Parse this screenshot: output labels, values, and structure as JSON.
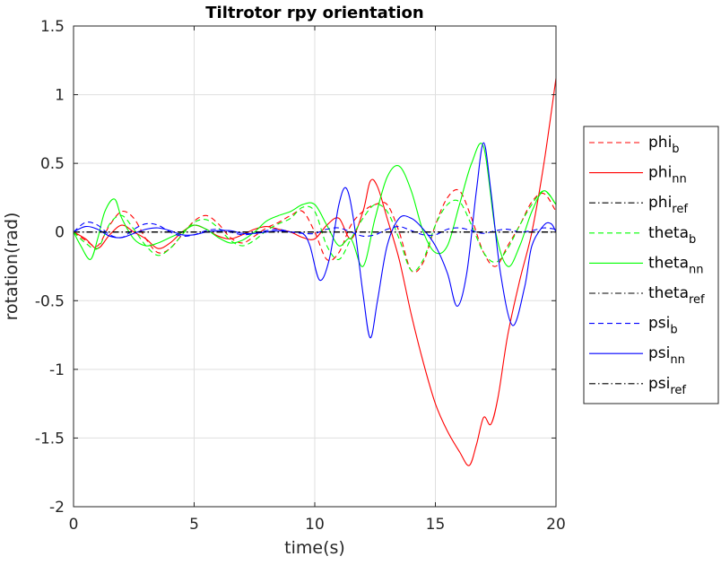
{
  "chart_data": {
    "type": "line",
    "title": "Tiltrotor rpy orientation",
    "xlabel": "time(s)",
    "ylabel": "rotation(rad)",
    "xlim": [
      0,
      20
    ],
    "ylim": [
      -2,
      1.5
    ],
    "xticks": [
      0,
      5,
      10,
      15,
      20
    ],
    "yticks": [
      -2,
      -1.5,
      -1,
      -0.5,
      0,
      0.5,
      1,
      1.5
    ],
    "xtick_labels": [
      "0",
      "5",
      "10",
      "15",
      "20"
    ],
    "ytick_labels": [
      "-2",
      "-1.5",
      "-1",
      "-0.5",
      "0",
      "0.5",
      "1",
      "1.5"
    ],
    "grid": true,
    "legend_position": "right",
    "series": [
      {
        "name": "phi_b",
        "legend_base": "phi",
        "legend_sub": "b",
        "color": "#ff0000",
        "dash": "dashed",
        "x": [
          0,
          0.5,
          1,
          1.5,
          2,
          2.5,
          3,
          3.5,
          4,
          4.5,
          5,
          5.5,
          6,
          6.5,
          7,
          7.5,
          8,
          8.5,
          9,
          9.5,
          10,
          10.5,
          11,
          11.5,
          12,
          12.5,
          13,
          13.5,
          14,
          14.5,
          15,
          15.5,
          16,
          16.5,
          17,
          17.5,
          18,
          18.5,
          19,
          19.5,
          20
        ],
        "y": [
          0,
          -0.06,
          -0.1,
          0.05,
          0.15,
          0.1,
          -0.05,
          -0.15,
          -0.12,
          -0.02,
          0.08,
          0.12,
          0.06,
          -0.04,
          -0.08,
          -0.03,
          0.03,
          0.07,
          0.12,
          0.15,
          0.0,
          -0.2,
          -0.15,
          0.05,
          0.15,
          0.2,
          0.2,
          0.0,
          -0.28,
          -0.22,
          0.05,
          0.25,
          0.3,
          0.1,
          -0.15,
          -0.25,
          -0.1,
          0.05,
          0.22,
          0.28,
          0.15
        ]
      },
      {
        "name": "phi_nn",
        "legend_base": "phi",
        "legend_sub": "nn",
        "color": "#ff0000",
        "dash": "solid",
        "x": [
          0,
          0.5,
          1,
          1.5,
          2,
          2.5,
          3,
          3.5,
          4,
          4.5,
          5,
          5.5,
          6,
          6.5,
          7,
          7.5,
          8,
          8.5,
          9,
          9.5,
          10,
          10.5,
          11,
          11.5,
          12,
          12.3,
          12.6,
          13,
          13.5,
          14,
          14.5,
          15,
          15.5,
          16,
          16.4,
          16.7,
          17,
          17.3,
          17.6,
          18,
          18.5,
          19,
          19.5,
          20
        ],
        "y": [
          0,
          -0.05,
          -0.12,
          -0.02,
          0.05,
          0.0,
          -0.05,
          -0.12,
          -0.08,
          0.0,
          0.05,
          0.02,
          -0.03,
          -0.05,
          -0.02,
          0.02,
          0.04,
          0.02,
          0.0,
          -0.04,
          -0.05,
          0.05,
          0.1,
          -0.05,
          0.15,
          0.37,
          0.33,
          0.1,
          -0.2,
          -0.6,
          -0.95,
          -1.25,
          -1.45,
          -1.6,
          -1.7,
          -1.55,
          -1.35,
          -1.4,
          -1.2,
          -0.75,
          -0.35,
          0.0,
          0.5,
          1.12
        ]
      },
      {
        "name": "phi_ref",
        "legend_base": "phi",
        "legend_sub": "ref",
        "color": "#000000",
        "dash": "dashdot",
        "x": [
          0,
          20
        ],
        "y": [
          0,
          0
        ]
      },
      {
        "name": "theta_b",
        "legend_base": "theta",
        "legend_sub": "b",
        "color": "#00ff00",
        "dash": "dashed",
        "x": [
          0,
          0.5,
          1,
          1.5,
          2,
          2.5,
          3,
          3.5,
          4,
          4.5,
          5,
          5.5,
          6,
          6.5,
          7,
          7.5,
          8,
          8.5,
          9,
          9.5,
          10,
          10.5,
          11,
          11.5,
          12,
          12.5,
          13,
          13.5,
          14,
          14.5,
          15,
          15.5,
          16,
          16.5,
          17,
          17.5,
          18,
          18.5,
          19,
          19.5,
          20
        ],
        "y": [
          0,
          -0.08,
          -0.12,
          0.06,
          0.12,
          0.02,
          -0.1,
          -0.17,
          -0.12,
          -0.02,
          0.07,
          0.09,
          0.03,
          -0.06,
          -0.1,
          -0.06,
          0.01,
          0.06,
          0.1,
          0.18,
          0.15,
          -0.1,
          -0.2,
          -0.05,
          0.1,
          0.2,
          0.15,
          -0.05,
          -0.28,
          -0.2,
          0.05,
          0.2,
          0.22,
          0.05,
          -0.15,
          -0.22,
          -0.12,
          0.05,
          0.2,
          0.3,
          0.2
        ]
      },
      {
        "name": "theta_nn",
        "legend_base": "theta",
        "legend_sub": "nn",
        "color": "#00ff00",
        "dash": "solid",
        "x": [
          0,
          0.3,
          0.7,
          1,
          1.3,
          1.7,
          2,
          2.5,
          3,
          3.5,
          4,
          4.5,
          5,
          5.5,
          6,
          6.5,
          7,
          7.5,
          8,
          8.5,
          9,
          9.5,
          10,
          10.5,
          11,
          11.5,
          12,
          12.5,
          13,
          13.5,
          14,
          14.5,
          15,
          15.5,
          16,
          16.5,
          17,
          17.5,
          18,
          18.5,
          19,
          19.5,
          20
        ],
        "y": [
          0,
          -0.1,
          -0.2,
          -0.05,
          0.15,
          0.24,
          0.1,
          -0.05,
          -0.1,
          -0.08,
          -0.04,
          0.0,
          0.05,
          0.02,
          -0.04,
          -0.08,
          -0.06,
          0.0,
          0.08,
          0.12,
          0.15,
          0.2,
          0.2,
          0.05,
          -0.1,
          -0.05,
          -0.25,
          0.1,
          0.4,
          0.48,
          0.3,
          0.0,
          -0.15,
          -0.1,
          0.2,
          0.5,
          0.62,
          0.0,
          -0.25,
          -0.1,
          0.15,
          0.3,
          0.2
        ]
      },
      {
        "name": "theta_ref",
        "legend_base": "theta",
        "legend_sub": "ref",
        "color": "#000000",
        "dash": "dashdot",
        "x": [
          0,
          20
        ],
        "y": [
          0,
          0
        ]
      },
      {
        "name": "psi_b",
        "legend_base": "psi",
        "legend_sub": "b",
        "color": "#0000ff",
        "dash": "dashed",
        "x": [
          0,
          0.5,
          1,
          1.5,
          2,
          2.5,
          3,
          3.5,
          4,
          4.5,
          5,
          5.5,
          6,
          6.5,
          7,
          7.5,
          8,
          8.5,
          9,
          9.5,
          10,
          10.5,
          11,
          11.5,
          12,
          12.5,
          13,
          13.5,
          14,
          14.5,
          15,
          15.5,
          16,
          16.5,
          17,
          17.5,
          18,
          18.5,
          19,
          19.5,
          20
        ],
        "y": [
          0,
          0.07,
          0.05,
          -0.02,
          -0.04,
          0.02,
          0.06,
          0.05,
          0.0,
          -0.03,
          -0.02,
          0.01,
          0.02,
          0.0,
          -0.02,
          -0.01,
          0.01,
          0.02,
          0.0,
          -0.01,
          -0.01,
          0.02,
          0.03,
          0.0,
          -0.03,
          -0.02,
          0.02,
          0.04,
          0.01,
          -0.02,
          -0.02,
          0.02,
          0.03,
          0.01,
          -0.01,
          0.01,
          0.02,
          0.0,
          0.01,
          0.03,
          0.02
        ]
      },
      {
        "name": "psi_nn",
        "legend_base": "psi",
        "legend_sub": "nn",
        "color": "#0000ff",
        "dash": "solid",
        "x": [
          0,
          0.5,
          1,
          1.5,
          2,
          2.5,
          3,
          3.5,
          4,
          4.5,
          5,
          5.5,
          6,
          6.5,
          7,
          7.5,
          8,
          8.5,
          9,
          9.5,
          9.8,
          10.2,
          10.6,
          11,
          11.3,
          11.6,
          12,
          12.3,
          12.6,
          13,
          13.5,
          14,
          14.5,
          15,
          15.5,
          15.9,
          16.3,
          16.7,
          17,
          17.3,
          17.7,
          18.2,
          18.7,
          19,
          19.5,
          19.8,
          20
        ],
        "y": [
          0,
          0.04,
          0.02,
          -0.03,
          -0.04,
          -0.01,
          0.02,
          0.03,
          0.01,
          -0.02,
          -0.02,
          0.0,
          0.01,
          0.01,
          -0.01,
          -0.01,
          0.0,
          0.01,
          0.0,
          -0.01,
          -0.1,
          -0.35,
          -0.2,
          0.2,
          0.32,
          0.1,
          -0.45,
          -0.77,
          -0.5,
          -0.1,
          0.1,
          0.1,
          0.02,
          -0.1,
          -0.3,
          -0.54,
          -0.3,
          0.3,
          0.65,
          0.3,
          -0.3,
          -0.68,
          -0.4,
          -0.1,
          0.05,
          0.06,
          0.0
        ]
      },
      {
        "name": "psi_ref",
        "legend_base": "psi",
        "legend_sub": "ref",
        "color": "#000000",
        "dash": "dashdot",
        "x": [
          0,
          20
        ],
        "y": [
          0,
          0
        ]
      }
    ]
  }
}
